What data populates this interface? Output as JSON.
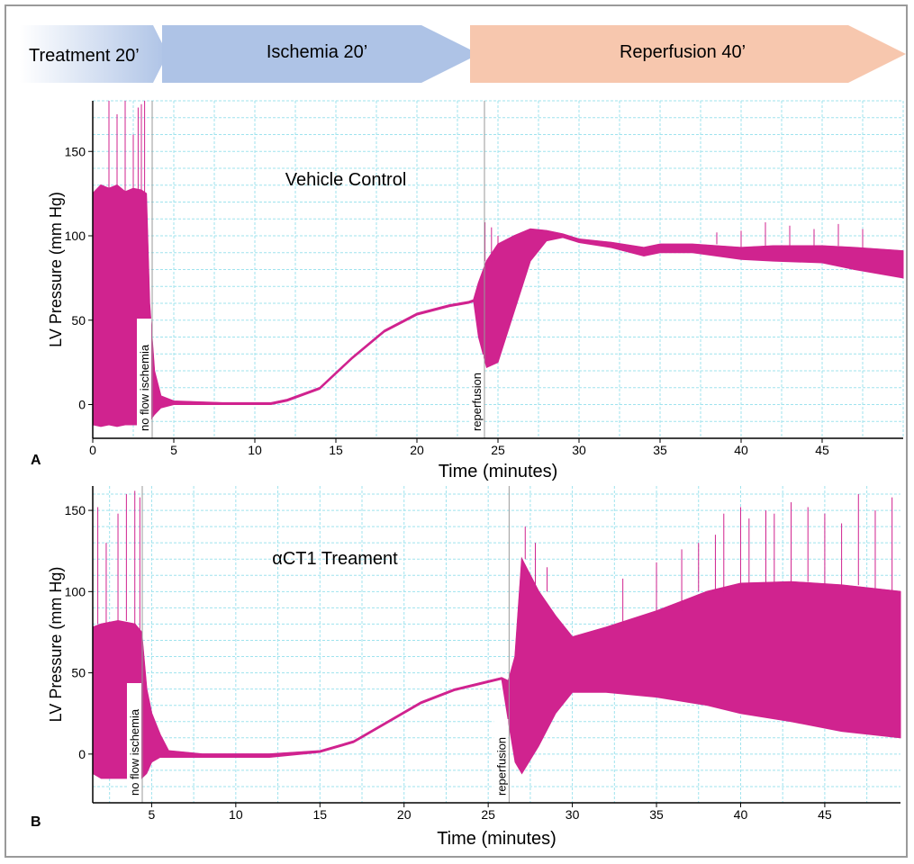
{
  "phases": [
    {
      "label": "Treatment 20’",
      "color": "#b8c6e2"
    },
    {
      "label": "Ischemia 20’",
      "color": "#aec3e6"
    },
    {
      "label": "Reperfusion 40’",
      "color": "#f7c7ae"
    }
  ],
  "colors": {
    "trace": "#d0238f",
    "grid": "#9fe3ee",
    "axis": "#000000",
    "marker": "#9a9a9a"
  },
  "chart_data": [
    {
      "panel_letter": "A",
      "type": "line",
      "title": "Vehicle Control",
      "xlabel": "Time (minutes)",
      "ylabel": "LV Pressure (mm Hg)",
      "xlim": [
        0,
        50
      ],
      "ylim": [
        -20,
        180
      ],
      "xticks": [
        0,
        5,
        10,
        15,
        20,
        25,
        30,
        35,
        40,
        45
      ],
      "yticks": [
        0,
        50,
        100,
        150
      ],
      "grid": true,
      "annotations": [
        {
          "text": "no flow ischemia",
          "x": 3.0
        },
        {
          "text": "reperfusion",
          "x": 23.5
        }
      ],
      "series": [
        {
          "upper": [
            [
              0,
              125
            ],
            [
              0.5,
              130
            ],
            [
              1,
              128
            ],
            [
              1.5,
              130
            ],
            [
              2,
              126
            ],
            [
              2.5,
              128
            ],
            [
              3,
              127
            ],
            [
              3.3,
              125
            ],
            [
              3.5,
              60
            ],
            [
              3.8,
              20
            ],
            [
              4.2,
              5
            ],
            [
              5,
              2
            ],
            [
              8,
              1
            ],
            [
              11,
              1
            ],
            [
              12,
              3
            ],
            [
              14,
              10
            ],
            [
              16,
              28
            ],
            [
              18,
              44
            ],
            [
              20,
              54
            ],
            [
              22,
              59
            ],
            [
              23.2,
              61
            ],
            [
              23.5,
              62
            ],
            [
              23.8,
              72
            ],
            [
              24.3,
              85
            ],
            [
              25,
              95
            ],
            [
              26,
              100
            ],
            [
              27,
              104
            ],
            [
              28,
              103
            ],
            [
              29,
              101
            ],
            [
              30,
              98
            ],
            [
              32,
              96
            ],
            [
              34,
              93
            ],
            [
              35,
              95
            ],
            [
              37,
              95
            ],
            [
              40,
              93
            ],
            [
              42,
              94
            ],
            [
              45,
              94
            ],
            [
              47,
              93
            ],
            [
              50,
              91
            ]
          ],
          "lower": [
            [
              0,
              -12
            ],
            [
              0.5,
              -13
            ],
            [
              1,
              -12
            ],
            [
              1.5,
              -13
            ],
            [
              2,
              -12
            ],
            [
              2.5,
              -12
            ],
            [
              3,
              -12
            ],
            [
              3.3,
              -12
            ],
            [
              3.5,
              -10
            ],
            [
              3.8,
              -6
            ],
            [
              4.2,
              -2
            ],
            [
              5,
              0
            ],
            [
              8,
              0
            ],
            [
              11,
              0
            ],
            [
              12,
              2
            ],
            [
              14,
              9
            ],
            [
              16,
              27
            ],
            [
              18,
              43
            ],
            [
              20,
              53
            ],
            [
              22,
              58
            ],
            [
              23.2,
              60
            ],
            [
              23.5,
              61
            ],
            [
              23.8,
              40
            ],
            [
              24.3,
              22
            ],
            [
              25,
              25
            ],
            [
              26,
              55
            ],
            [
              27,
              85
            ],
            [
              28,
              97
            ],
            [
              29,
              99
            ],
            [
              30,
              96
            ],
            [
              32,
              93
            ],
            [
              34,
              88
            ],
            [
              35,
              90
            ],
            [
              37,
              90
            ],
            [
              40,
              86
            ],
            [
              42,
              85
            ],
            [
              45,
              84
            ],
            [
              47,
              80
            ],
            [
              50,
              75
            ]
          ],
          "spikes": [
            [
              1.0,
              180
            ],
            [
              1.5,
              172
            ],
            [
              2.0,
              180
            ],
            [
              2.5,
              160
            ],
            [
              2.8,
              176
            ],
            [
              3.0,
              178
            ],
            [
              3.2,
              180
            ],
            [
              24.2,
              108
            ],
            [
              24.6,
              105
            ],
            [
              25.0,
              100
            ],
            [
              38.5,
              102
            ],
            [
              40.0,
              103
            ],
            [
              41.5,
              108
            ],
            [
              43.0,
              106
            ],
            [
              44.5,
              104
            ],
            [
              46.0,
              107
            ],
            [
              47.5,
              104
            ]
          ]
        }
      ]
    },
    {
      "panel_letter": "B",
      "type": "line",
      "title": "αCT1 Treament",
      "xlabel": "Time (minutes)",
      "ylabel": "LV Pressure (mm Hg)",
      "xlim": [
        1.5,
        49.5
      ],
      "ylim": [
        -30,
        165
      ],
      "xticks": [
        5,
        10,
        15,
        20,
        25,
        30,
        35,
        40,
        45
      ],
      "yticks": [
        0,
        50,
        100,
        150
      ],
      "grid": true,
      "annotations": [
        {
          "text": "no flow ischemia",
          "x": 3.8
        },
        {
          "text": "reperfusion",
          "x": 25.6
        }
      ],
      "series": [
        {
          "upper": [
            [
              1.5,
              78
            ],
            [
              2,
              80
            ],
            [
              3,
              82
            ],
            [
              4,
              80
            ],
            [
              4.4,
              75
            ],
            [
              4.7,
              40
            ],
            [
              5,
              25
            ],
            [
              5.5,
              12
            ],
            [
              6,
              2
            ],
            [
              8,
              0
            ],
            [
              12,
              0
            ],
            [
              15,
              2
            ],
            [
              17,
              8
            ],
            [
              19,
              20
            ],
            [
              21,
              32
            ],
            [
              23,
              40
            ],
            [
              25,
              45
            ],
            [
              25.8,
              47
            ],
            [
              26.2,
              45
            ],
            [
              26.6,
              60
            ],
            [
              27,
              120
            ],
            [
              28,
              100
            ],
            [
              29,
              85
            ],
            [
              30,
              72
            ],
            [
              32,
              78
            ],
            [
              35,
              88
            ],
            [
              38,
              100
            ],
            [
              40,
              105
            ],
            [
              43,
              106
            ],
            [
              46,
              104
            ],
            [
              49.5,
              100
            ]
          ],
          "lower": [
            [
              1.5,
              -12
            ],
            [
              2,
              -15
            ],
            [
              3,
              -15
            ],
            [
              4,
              -15
            ],
            [
              4.4,
              -15
            ],
            [
              4.7,
              -12
            ],
            [
              5,
              -5
            ],
            [
              5.5,
              -2
            ],
            [
              6,
              -2
            ],
            [
              8,
              -2
            ],
            [
              12,
              -2
            ],
            [
              15,
              1
            ],
            [
              17,
              7
            ],
            [
              19,
              19
            ],
            [
              21,
              31
            ],
            [
              23,
              39
            ],
            [
              25,
              44
            ],
            [
              25.8,
              46
            ],
            [
              26.2,
              20
            ],
            [
              26.6,
              -5
            ],
            [
              27,
              -12
            ],
            [
              28,
              5
            ],
            [
              29,
              25
            ],
            [
              30,
              38
            ],
            [
              32,
              38
            ],
            [
              35,
              35
            ],
            [
              38,
              30
            ],
            [
              40,
              25
            ],
            [
              43,
              20
            ],
            [
              46,
              14
            ],
            [
              49.5,
              10
            ]
          ],
          "spikes": [
            [
              1.8,
              152
            ],
            [
              2.3,
              130
            ],
            [
              3.0,
              148
            ],
            [
              3.5,
              160
            ],
            [
              4.0,
              162
            ],
            [
              4.3,
              158
            ],
            [
              27.2,
              140
            ],
            [
              27.8,
              130
            ],
            [
              28.5,
              115
            ],
            [
              33,
              108
            ],
            [
              35,
              118
            ],
            [
              36.5,
              126
            ],
            [
              37.5,
              130
            ],
            [
              38.5,
              135
            ],
            [
              39,
              148
            ],
            [
              40,
              152
            ],
            [
              40.5,
              145
            ],
            [
              41.5,
              150
            ],
            [
              42,
              148
            ],
            [
              43,
              155
            ],
            [
              44,
              152
            ],
            [
              45,
              148
            ],
            [
              46,
              142
            ],
            [
              47,
              160
            ],
            [
              48,
              150
            ],
            [
              49,
              158
            ]
          ]
        }
      ]
    }
  ]
}
